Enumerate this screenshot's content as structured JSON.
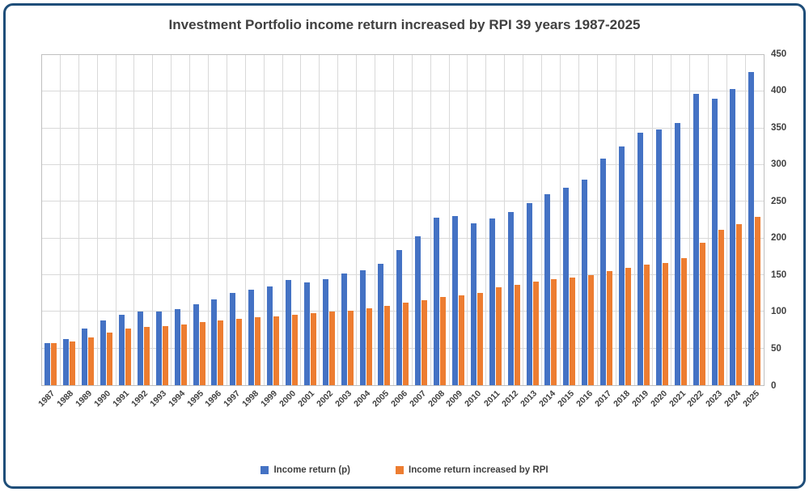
{
  "chart_data": {
    "type": "bar",
    "title": "Investment Portfolio income return increased by RPI 39 years 1987-2025",
    "categories": [
      "1987",
      "1988",
      "1989",
      "1990",
      "1991",
      "1992",
      "1993",
      "1994",
      "1995",
      "1996",
      "1997",
      "1998",
      "1999",
      "2000",
      "2001",
      "2002",
      "2003",
      "2004",
      "2005",
      "2006",
      "2007",
      "2008",
      "2009",
      "2010",
      "2011",
      "2012",
      "2013",
      "2014",
      "2015",
      "2016",
      "2017",
      "2018",
      "2019",
      "2020",
      "2021",
      "2022",
      "2023",
      "2024",
      "2025"
    ],
    "series": [
      {
        "name": "Income return (p)",
        "color": "#4472C4",
        "values": [
          57,
          63,
          77,
          88,
          96,
          100,
          100,
          104,
          110,
          117,
          126,
          130,
          135,
          143,
          140,
          145,
          152,
          157,
          165,
          184,
          203,
          228,
          231,
          221,
          227,
          236,
          248,
          260,
          269,
          280,
          309,
          325,
          344,
          349,
          357,
          397,
          390,
          404,
          427
        ]
      },
      {
        "name": "Income return increased by RPI",
        "color": "#ED7D31",
        "values": [
          57,
          60,
          65,
          72,
          77,
          79,
          81,
          83,
          86,
          88,
          90,
          93,
          94,
          96,
          98,
          100,
          102,
          105,
          108,
          112,
          116,
          120,
          122,
          126,
          133,
          137,
          141,
          145,
          147,
          150,
          155,
          160,
          164,
          167,
          173,
          194,
          212,
          220,
          229
        ]
      }
    ],
    "ylim": [
      0,
      450
    ],
    "yticks": [
      0,
      50,
      100,
      150,
      200,
      250,
      300,
      350,
      400,
      450
    ],
    "y_axis_side": "right",
    "xlabel": "",
    "ylabel": "",
    "grid": true,
    "legend_position": "bottom",
    "frame_border_color": "#1F4E79",
    "gridline_color": "#D9D9D9"
  }
}
